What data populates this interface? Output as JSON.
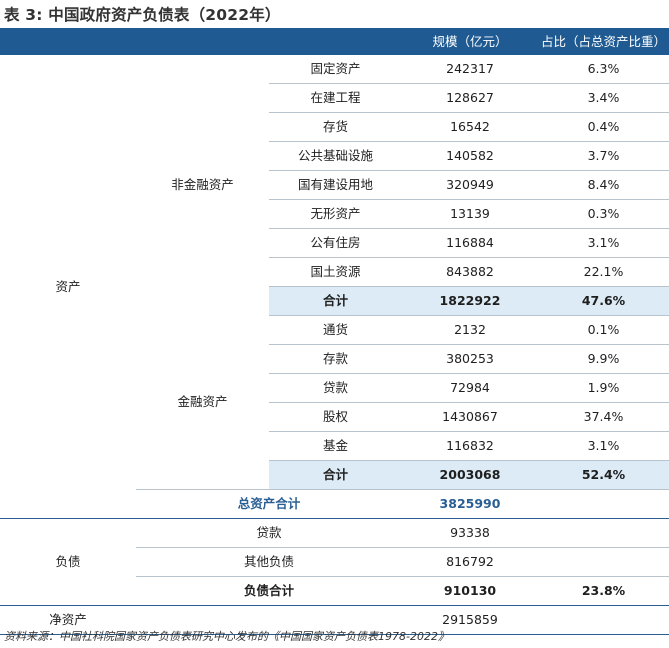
{
  "title": "表 3: 中国政府资产负债表（2022年）",
  "header": {
    "col1": "",
    "col2": "",
    "scale": "规模（亿元）",
    "share": "占比（占总资产比重）"
  },
  "assets": {
    "label": "资产",
    "nonfin": {
      "label": "非金融资产",
      "rows": [
        {
          "item": "固定资产",
          "scale": "242317",
          "share": "6.3%"
        },
        {
          "item": "在建工程",
          "scale": "128627",
          "share": "3.4%"
        },
        {
          "item": "存货",
          "scale": "16542",
          "share": "0.4%"
        },
        {
          "item": "公共基础设施",
          "scale": "140582",
          "share": "3.7%"
        },
        {
          "item": "国有建设用地",
          "scale": "320949",
          "share": "8.4%"
        },
        {
          "item": "无形资产",
          "scale": "13139",
          "share": "0.3%"
        },
        {
          "item": "公有住房",
          "scale": "116884",
          "share": "3.1%"
        },
        {
          "item": "国土资源",
          "scale": "843882",
          "share": "22.1%"
        }
      ],
      "subtotal": {
        "item": "合计",
        "scale": "1822922",
        "share": "47.6%"
      }
    },
    "fin": {
      "label": "金融资产",
      "rows": [
        {
          "item": "通货",
          "scale": "2132",
          "share": "0.1%"
        },
        {
          "item": "存款",
          "scale": "380253",
          "share": "9.9%"
        },
        {
          "item": "贷款",
          "scale": "72984",
          "share": "1.9%"
        },
        {
          "item": "股权",
          "scale": "1430867",
          "share": "37.4%"
        },
        {
          "item": "基金",
          "scale": "116832",
          "share": "3.1%"
        }
      ],
      "subtotal": {
        "item": "合计",
        "scale": "2003068",
        "share": "52.4%"
      }
    },
    "total": {
      "label": "总资产合计",
      "scale": "3825990",
      "share": ""
    }
  },
  "liabilities": {
    "label": "负债",
    "rows": [
      {
        "item": "贷款",
        "scale": "93338",
        "share": ""
      },
      {
        "item": "其他负债",
        "scale": "816792",
        "share": ""
      }
    ],
    "total": {
      "item": "负债合计",
      "scale": "910130",
      "share": "23.8%"
    }
  },
  "net_assets": {
    "label": "净资产",
    "scale": "2915859",
    "share": ""
  },
  "footnote": "资料来源：中国社科院国家资产负债表研究中心发布的《中国国家资产负债表1978-2022》"
}
